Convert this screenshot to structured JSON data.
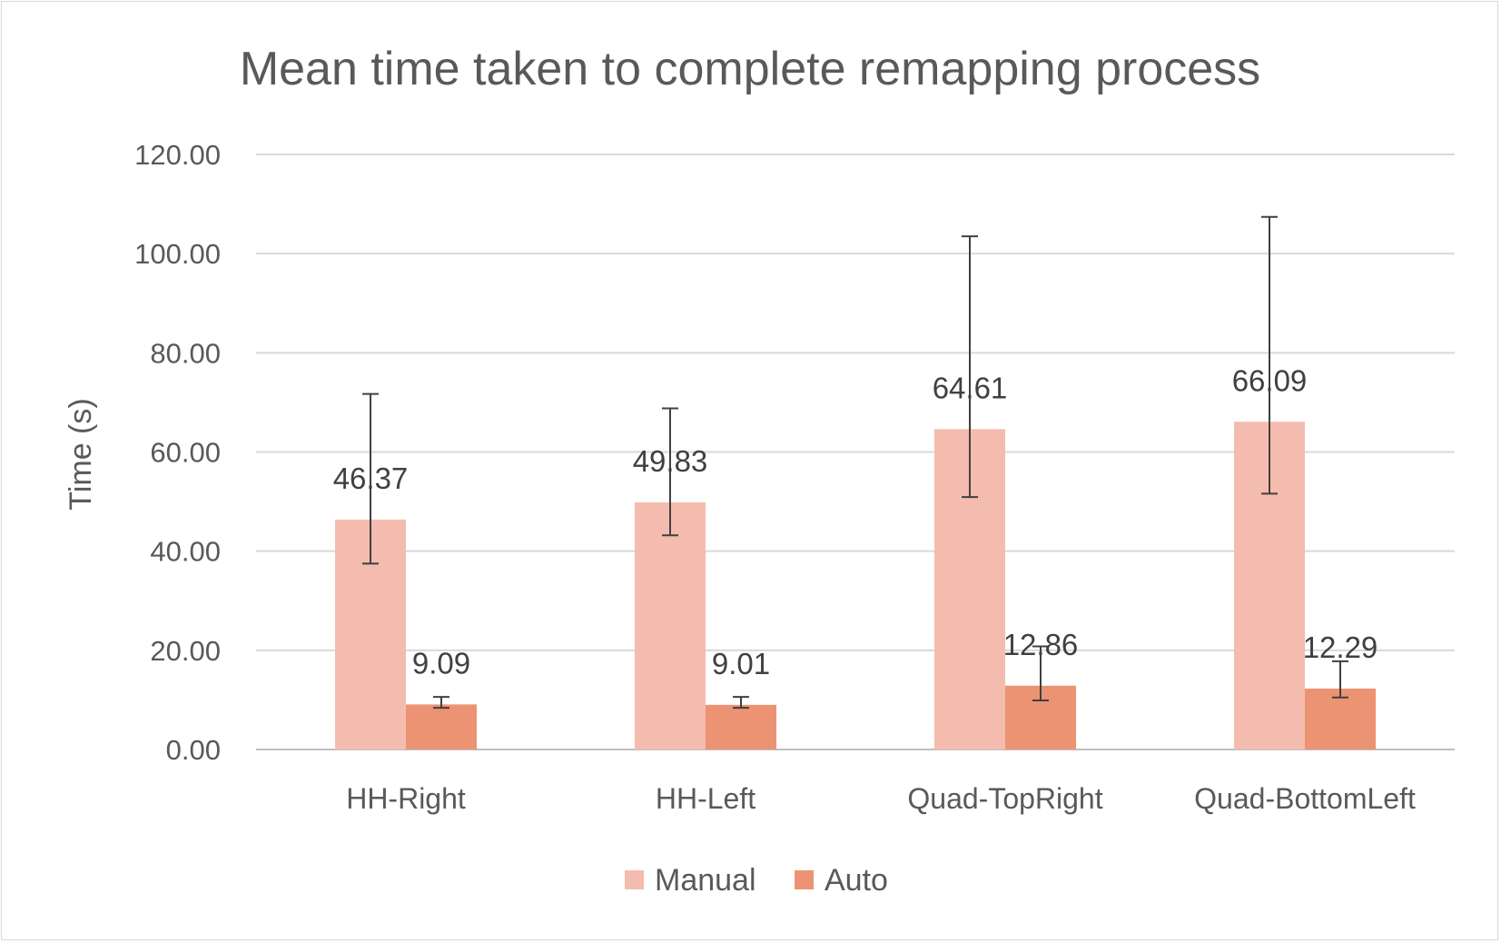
{
  "chart_data": {
    "type": "bar",
    "title": "Mean time taken to complete remapping process",
    "ylabel": "Time (s)",
    "xlabel": "",
    "categories": [
      "HH-Right",
      "HH-Left",
      "Quad-TopRight",
      "Quad-BottomLeft"
    ],
    "series": [
      {
        "name": "Manual",
        "color": "#f4bcae",
        "values": [
          46.37,
          49.83,
          64.61,
          66.09
        ],
        "labels": [
          "46.37",
          "49.83",
          "64.61",
          "66.09"
        ],
        "err_low": [
          37.5,
          43.2,
          50.9,
          51.6
        ],
        "err_high": [
          71.7,
          68.8,
          103.5,
          107.4
        ]
      },
      {
        "name": "Auto",
        "color": "#ec9373",
        "values": [
          9.09,
          9.01,
          12.86,
          12.29
        ],
        "labels": [
          "9.09",
          "9.01",
          "12.86",
          "12.29"
        ],
        "err_low": [
          8.4,
          8.4,
          9.9,
          10.5
        ],
        "err_high": [
          10.6,
          10.6,
          20.8,
          17.8
        ]
      }
    ],
    "ylim": [
      0,
      120
    ],
    "yticks": [
      0,
      20,
      40,
      60,
      80,
      100,
      120
    ],
    "ytick_labels": [
      "0.00",
      "20.00",
      "40.00",
      "60.00",
      "80.00",
      "100.00",
      "120.00"
    ],
    "grid": true,
    "error_bars": true,
    "legend_position": "bottom-center",
    "colors": {
      "gridline": "#d9d9d9",
      "axis": "#bfbfbf",
      "error_bar": "#404040",
      "text": "#595959"
    }
  }
}
